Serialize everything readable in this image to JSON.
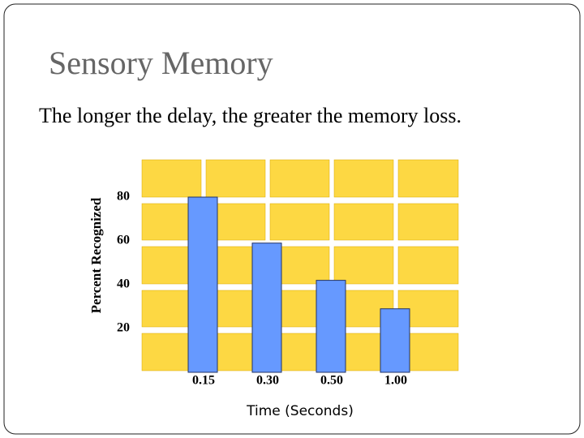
{
  "chart_data": {
    "type": "bar",
    "title": "Sensory Memory",
    "subtitle": "The longer the delay, the greater the memory loss.",
    "x_label": "Time (Seconds)",
    "y_label": "Percent Recognized",
    "categories": [
      "0.15",
      "0.30",
      "0.50",
      "1.00"
    ],
    "values": [
      80,
      59,
      42,
      29
    ],
    "color": "#6699ff",
    "ylim": [
      0,
      100
    ],
    "yticks": [
      20,
      40,
      60,
      80
    ]
  }
}
